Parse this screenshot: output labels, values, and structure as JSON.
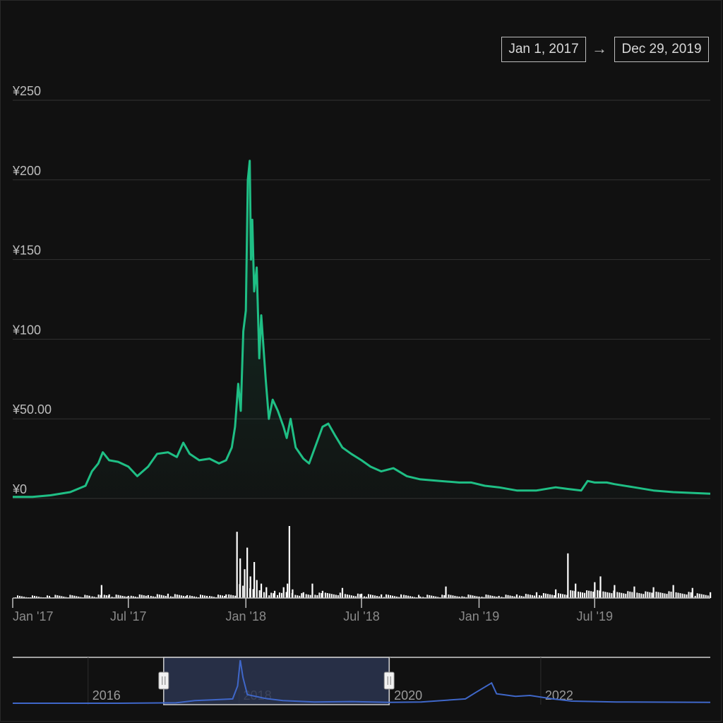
{
  "range_selector": {
    "from": "Jan 1, 2017",
    "arrow": "→",
    "to": "Dec 29, 2019"
  },
  "colors": {
    "background": "#111111",
    "price_line": "#1fbf85",
    "volume": "#ffffff",
    "navigator_line": "#3f67c9",
    "navigator_mask": "#2b3550",
    "grid": "#333333",
    "axis_text": "#bdbdbd"
  },
  "chart_data": {
    "type": "line",
    "title": "",
    "xlabel": "",
    "ylabel": "",
    "ylim": [
      0,
      250
    ],
    "yticks": [
      "¥0",
      "¥50.00",
      "¥100",
      "¥150",
      "¥200",
      "¥250"
    ],
    "ytick_values": [
      0,
      50,
      100,
      150,
      200,
      250
    ],
    "xlim": [
      "2017-01-01",
      "2019-12-29"
    ],
    "xticks": [
      {
        "date": "2017-01-01",
        "label": "Jan '17"
      },
      {
        "date": "2017-07-01",
        "label": "Jul '17"
      },
      {
        "date": "2018-01-01",
        "label": "Jan '18"
      },
      {
        "date": "2018-07-01",
        "label": "Jul '18"
      },
      {
        "date": "2019-01-01",
        "label": "Jan '19"
      },
      {
        "date": "2019-07-01",
        "label": "Jul '19"
      }
    ],
    "grid": true,
    "series": [
      {
        "type": "area-line",
        "points": [
          [
            "2017-01-01",
            1
          ],
          [
            "2017-02-01",
            1
          ],
          [
            "2017-03-01",
            2
          ],
          [
            "2017-04-01",
            4
          ],
          [
            "2017-04-25",
            8
          ],
          [
            "2017-05-05",
            17
          ],
          [
            "2017-05-15",
            22
          ],
          [
            "2017-05-22",
            29
          ],
          [
            "2017-06-01",
            24
          ],
          [
            "2017-06-15",
            23
          ],
          [
            "2017-07-01",
            20
          ],
          [
            "2017-07-15",
            14
          ],
          [
            "2017-08-01",
            20
          ],
          [
            "2017-08-15",
            28
          ],
          [
            "2017-09-01",
            29
          ],
          [
            "2017-09-15",
            26
          ],
          [
            "2017-09-25",
            35
          ],
          [
            "2017-10-05",
            28
          ],
          [
            "2017-10-20",
            24
          ],
          [
            "2017-11-05",
            25
          ],
          [
            "2017-11-20",
            22
          ],
          [
            "2017-12-01",
            24
          ],
          [
            "2017-12-10",
            32
          ],
          [
            "2017-12-15",
            45
          ],
          [
            "2017-12-20",
            72
          ],
          [
            "2017-12-24",
            55
          ],
          [
            "2017-12-28",
            105
          ],
          [
            "2018-01-01",
            118
          ],
          [
            "2018-01-04",
            200
          ],
          [
            "2018-01-07",
            212
          ],
          [
            "2018-01-09",
            150
          ],
          [
            "2018-01-11",
            175
          ],
          [
            "2018-01-14",
            130
          ],
          [
            "2018-01-18",
            145
          ],
          [
            "2018-01-22",
            88
          ],
          [
            "2018-01-25",
            115
          ],
          [
            "2018-02-01",
            75
          ],
          [
            "2018-02-06",
            50
          ],
          [
            "2018-02-12",
            62
          ],
          [
            "2018-02-20",
            55
          ],
          [
            "2018-03-01",
            45
          ],
          [
            "2018-03-06",
            38
          ],
          [
            "2018-03-12",
            50
          ],
          [
            "2018-03-20",
            32
          ],
          [
            "2018-04-01",
            25
          ],
          [
            "2018-04-10",
            22
          ],
          [
            "2018-04-20",
            33
          ],
          [
            "2018-05-01",
            45
          ],
          [
            "2018-05-10",
            47
          ],
          [
            "2018-05-20",
            40
          ],
          [
            "2018-06-01",
            32
          ],
          [
            "2018-06-15",
            28
          ],
          [
            "2018-07-01",
            24
          ],
          [
            "2018-07-15",
            20
          ],
          [
            "2018-08-01",
            17
          ],
          [
            "2018-08-20",
            19
          ],
          [
            "2018-09-10",
            14
          ],
          [
            "2018-10-01",
            12
          ],
          [
            "2018-11-01",
            11
          ],
          [
            "2018-12-01",
            10
          ],
          [
            "2018-12-20",
            10
          ],
          [
            "2019-01-10",
            8
          ],
          [
            "2019-02-01",
            7
          ],
          [
            "2019-03-01",
            5
          ],
          [
            "2019-04-01",
            5
          ],
          [
            "2019-05-01",
            7
          ],
          [
            "2019-05-20",
            6
          ],
          [
            "2019-06-10",
            5
          ],
          [
            "2019-06-20",
            11
          ],
          [
            "2019-07-01",
            10
          ],
          [
            "2019-07-20",
            10
          ],
          [
            "2019-08-01",
            9
          ],
          [
            "2019-09-01",
            7
          ],
          [
            "2019-10-01",
            5
          ],
          [
            "2019-11-01",
            4
          ],
          [
            "2019-12-29",
            3
          ]
        ]
      },
      {
        "type": "volume-bars",
        "ymax": 100,
        "points": [
          [
            "2017-01-01",
            0
          ],
          [
            "2017-03-01",
            1
          ],
          [
            "2017-05-01",
            3
          ],
          [
            "2017-05-20",
            18
          ],
          [
            "2017-06-01",
            5
          ],
          [
            "2017-07-01",
            3
          ],
          [
            "2017-08-01",
            4
          ],
          [
            "2017-09-01",
            6
          ],
          [
            "2017-10-01",
            4
          ],
          [
            "2017-11-01",
            3
          ],
          [
            "2017-12-01",
            5
          ],
          [
            "2017-12-18",
            92
          ],
          [
            "2017-12-23",
            55
          ],
          [
            "2017-12-30",
            40
          ],
          [
            "2018-01-03",
            70
          ],
          [
            "2018-01-08",
            30
          ],
          [
            "2018-01-14",
            50
          ],
          [
            "2018-01-18",
            25
          ],
          [
            "2018-01-25",
            20
          ],
          [
            "2018-02-02",
            15
          ],
          [
            "2018-02-15",
            10
          ],
          [
            "2018-03-01",
            15
          ],
          [
            "2018-03-07",
            20
          ],
          [
            "2018-03-10",
            100
          ],
          [
            "2018-03-15",
            12
          ],
          [
            "2018-04-01",
            8
          ],
          [
            "2018-04-15",
            20
          ],
          [
            "2018-05-01",
            10
          ],
          [
            "2018-06-01",
            14
          ],
          [
            "2018-07-01",
            6
          ],
          [
            "2018-08-01",
            5
          ],
          [
            "2018-09-01",
            4
          ],
          [
            "2018-10-01",
            2
          ],
          [
            "2018-11-10",
            16
          ],
          [
            "2018-12-01",
            2
          ],
          [
            "2019-01-01",
            2
          ],
          [
            "2019-02-01",
            3
          ],
          [
            "2019-03-01",
            5
          ],
          [
            "2019-04-01",
            8
          ],
          [
            "2019-05-01",
            12
          ],
          [
            "2019-05-20",
            62
          ],
          [
            "2019-06-01",
            20
          ],
          [
            "2019-07-01",
            22
          ],
          [
            "2019-07-10",
            30
          ],
          [
            "2019-08-01",
            18
          ],
          [
            "2019-09-01",
            16
          ],
          [
            "2019-10-01",
            15
          ],
          [
            "2019-11-01",
            18
          ],
          [
            "2019-12-01",
            14
          ],
          [
            "2019-12-29",
            8
          ]
        ]
      }
    ],
    "navigator": {
      "type": "line",
      "xlim": [
        "2015-01-01",
        "2024-04-01"
      ],
      "selected": [
        "2017-01-01",
        "2019-12-29"
      ],
      "xticks": [
        {
          "date": "2016-01-01",
          "label": "2016"
        },
        {
          "date": "2018-01-01",
          "label": "2018"
        },
        {
          "date": "2020-01-01",
          "label": "2020"
        },
        {
          "date": "2022-01-01",
          "label": "2022"
        }
      ],
      "points": [
        [
          "2015-01-01",
          0
        ],
        [
          "2016-06-01",
          0
        ],
        [
          "2017-03-01",
          1
        ],
        [
          "2017-06-01",
          6
        ],
        [
          "2017-09-01",
          8
        ],
        [
          "2017-12-01",
          10
        ],
        [
          "2017-12-25",
          40
        ],
        [
          "2018-01-07",
          100
        ],
        [
          "2018-01-20",
          60
        ],
        [
          "2018-02-10",
          20
        ],
        [
          "2018-05-10",
          11
        ],
        [
          "2018-08-01",
          6
        ],
        [
          "2019-01-01",
          3
        ],
        [
          "2019-07-01",
          4
        ],
        [
          "2020-01-01",
          2
        ],
        [
          "2020-06-01",
          3
        ],
        [
          "2021-01-01",
          10
        ],
        [
          "2021-02-20",
          25
        ],
        [
          "2021-05-08",
          47
        ],
        [
          "2021-06-01",
          22
        ],
        [
          "2021-09-01",
          16
        ],
        [
          "2021-11-10",
          18
        ],
        [
          "2022-03-01",
          10
        ],
        [
          "2022-06-01",
          5
        ],
        [
          "2023-01-01",
          3
        ],
        [
          "2024-04-01",
          2
        ]
      ]
    }
  }
}
